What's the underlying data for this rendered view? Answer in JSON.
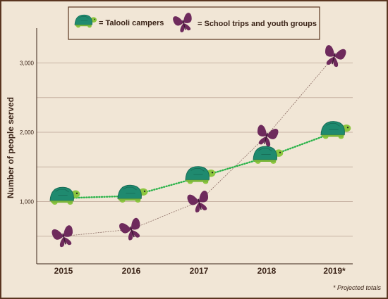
{
  "chart_data": {
    "type": "line",
    "categories": [
      "2015",
      "2016",
      "2017",
      "2018",
      "2019*"
    ],
    "ylabel": "Number of people served",
    "yticks": [
      1000,
      2000,
      3000
    ],
    "ytick_labels": [
      "1,000",
      "2,000",
      "3,000"
    ],
    "ylim": [
      0,
      3500
    ],
    "grid": true,
    "legend_position": "top",
    "series": [
      {
        "name": "= Talooli campers",
        "marker": "turtle",
        "line_style": "dotted",
        "color": "#2bb34a",
        "values": [
          1050,
          1080,
          1350,
          1640,
          2000
        ]
      },
      {
        "name": "= School trips and youth groups",
        "marker": "butterfly",
        "line_style": "thin-dashed",
        "color": "#6e2a5c",
        "values": [
          500,
          600,
          1000,
          1950,
          3100
        ]
      }
    ],
    "footnote": "* Projected totals"
  },
  "colors": {
    "background": "#f1e6d6",
    "gridline": "#c7b3a4",
    "axis": "#3b2418",
    "turtle_shell": "#1f8a6f",
    "turtle_skin": "#8cc63f",
    "butterfly": "#6e2a5c"
  }
}
